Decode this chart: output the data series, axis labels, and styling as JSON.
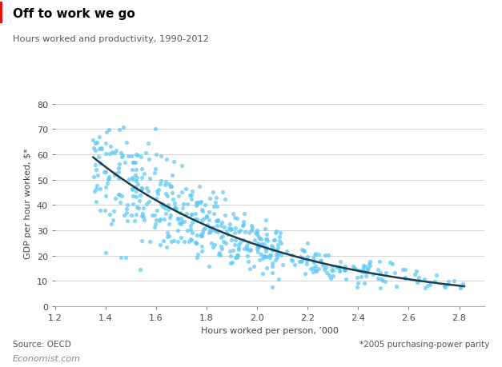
{
  "title": "Off to work we go",
  "subtitle": "Hours worked and productivity, 1990-2012",
  "xlabel": "Hours worked per person, ’000",
  "ylabel": "GDP per hour worked, $*",
  "source_left": "Source: OECD",
  "source_right": "*2005 purchasing-power parity",
  "branding": "Economist.com",
  "xlim": [
    1.2,
    2.9
  ],
  "ylim": [
    0,
    82
  ],
  "xticks": [
    1.2,
    1.4,
    1.6,
    1.8,
    2.0,
    2.2,
    2.4,
    2.6,
    2.8
  ],
  "yticks": [
    0,
    10,
    20,
    30,
    40,
    50,
    60,
    70,
    80
  ],
  "dot_color": "#5bc8f5",
  "dot_alpha": 0.72,
  "dot_size": 14,
  "curve_color": "#1c3d4a",
  "curve_linewidth": 1.8,
  "background_color": "#ffffff",
  "title_color": "#000000",
  "subtitle_color": "#555555",
  "accent_color": "#e3120b",
  "curve_a": 132.0,
  "curve_b": -2.0
}
